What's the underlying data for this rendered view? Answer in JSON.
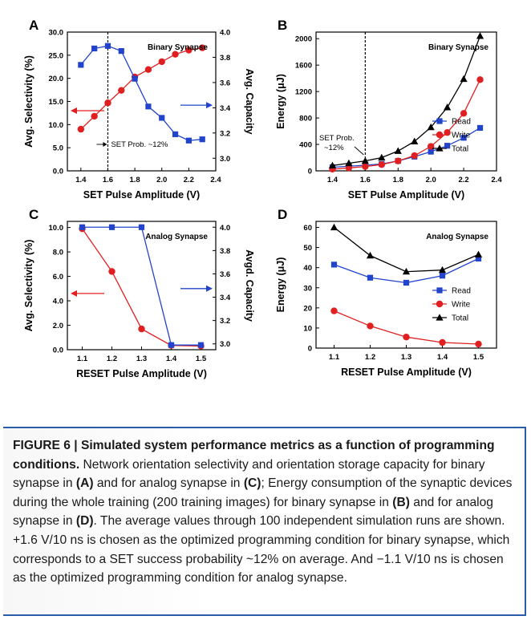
{
  "panels": [
    {
      "letter": "A",
      "annotation": "Binary Synapse",
      "chart_data": {
        "type": "line",
        "x": [
          1.4,
          1.5,
          1.6,
          1.7,
          1.8,
          1.9,
          2.0,
          2.1,
          2.2,
          2.3
        ],
        "xlabel": "SET Pulse Amplitude (V)",
        "xlim": [
          1.3,
          2.4
        ],
        "xticks": [
          "1.4",
          "1.6",
          "1.8",
          "2.0",
          "2.2",
          "2.4"
        ],
        "ylabel": "Avg. Selectivity (%)",
        "ylim": [
          0,
          30
        ],
        "yticks": [
          "0.0",
          "5.0",
          "10.0",
          "15.0",
          "20.0",
          "25.0",
          "30.0"
        ],
        "y2label": "Avg. Capacity",
        "y2lim": [
          2.9,
          4.0
        ],
        "y2ticks": [
          "3.0",
          "3.2",
          "3.4",
          "3.6",
          "3.8",
          "4.0"
        ],
        "series": [
          {
            "values": [
              9.0,
              11.8,
              14.7,
              17.4,
              20.3,
              21.9,
              23.6,
              25.2,
              26.1,
              26.6
            ],
            "axis": "left",
            "color": "#e02020",
            "marker": "circle"
          },
          {
            "values": [
              3.74,
              3.87,
              3.89,
              3.85,
              3.63,
              3.41,
              3.32,
              3.19,
              3.14,
              3.15
            ],
            "axis": "right",
            "color": "#2244cc",
            "marker": "square"
          }
        ],
        "vline": {
          "x": 1.6,
          "label": "SET Prob. ~12%"
        }
      }
    },
    {
      "letter": "B",
      "annotation": "Binary Synapse",
      "chart_data": {
        "type": "line",
        "x": [
          1.4,
          1.5,
          1.6,
          1.7,
          1.8,
          1.9,
          2.0,
          2.1,
          2.2,
          2.3
        ],
        "xlabel": "SET Pulse Amplitude (V)",
        "xlim": [
          1.3,
          2.4
        ],
        "xticks": [
          "1.4",
          "1.6",
          "1.8",
          "2.0",
          "2.2",
          "2.4"
        ],
        "ylabel": "Energy (μJ)",
        "ylim": [
          0,
          2100
        ],
        "yticks": [
          "0",
          "400",
          "800",
          "1200",
          "1600",
          "2000"
        ],
        "legend": "bottom-right",
        "series": [
          {
            "name": "Read",
            "values": [
              55,
              70,
              85,
              105,
              150,
              215,
              290,
              380,
              500,
              650
            ],
            "color": "#2244cc",
            "marker": "square"
          },
          {
            "name": "Write",
            "values": [
              25,
              45,
              65,
              95,
              150,
              230,
              370,
              580,
              870,
              1380
            ],
            "color": "#e02020",
            "marker": "circle"
          },
          {
            "name": "Total",
            "values": [
              80,
              115,
              150,
              200,
              300,
              445,
              660,
              960,
              1390,
              2040
            ],
            "color": "#000000",
            "marker": "triangle"
          }
        ],
        "vline": {
          "x": 1.6,
          "label": [
            "SET Prob.",
            "~12%"
          ]
        }
      }
    },
    {
      "letter": "C",
      "annotation": "Analog Synapse",
      "chart_data": {
        "type": "line",
        "x": [
          1.1,
          1.2,
          1.3,
          1.4,
          1.5
        ],
        "xlabel": "RESET Pulse Amplitude (V)",
        "xlim": [
          1.05,
          1.55
        ],
        "xticks": [
          "1.1",
          "1.2",
          "1.3",
          "1.4",
          "1.5"
        ],
        "ylabel": "Avg. Selectivity (%)",
        "ylim": [
          0,
          10.5
        ],
        "yticks": [
          "0.0",
          "2.0",
          "4.0",
          "6.0",
          "8.0",
          "10.0"
        ],
        "y2label": "Avgd. Capacity",
        "y2lim": [
          2.95,
          4.05
        ],
        "y2ticks": [
          "3.0",
          "3.2",
          "3.4",
          "3.6",
          "3.8",
          "4.0"
        ],
        "series": [
          {
            "values": [
              9.9,
              6.4,
              1.7,
              0.35,
              0.3
            ],
            "axis": "left",
            "color": "#e02020",
            "marker": "circle"
          },
          {
            "values": [
              4.0,
              4.0,
              4.0,
              2.99,
              2.99
            ],
            "axis": "right",
            "color": "#2244cc",
            "marker": "square"
          }
        ]
      }
    },
    {
      "letter": "D",
      "annotation": "Analog Synapse",
      "chart_data": {
        "type": "line",
        "x": [
          1.1,
          1.2,
          1.3,
          1.4,
          1.5
        ],
        "xlabel": "RESET Pulse Amplitude (V)",
        "xlim": [
          1.05,
          1.55
        ],
        "xticks": [
          "1.1",
          "1.2",
          "1.3",
          "1.4",
          "1.5"
        ],
        "ylabel": "Energy (μJ)",
        "ylim": [
          0,
          63
        ],
        "yticks": [
          "0",
          "10",
          "20",
          "30",
          "40",
          "50",
          "60"
        ],
        "legend": "right",
        "series": [
          {
            "name": "Read",
            "values": [
              41.5,
              35.0,
              32.5,
              36.0,
              44.5
            ],
            "color": "#2244cc",
            "marker": "square"
          },
          {
            "name": "Write",
            "values": [
              18.5,
              11.0,
              5.5,
              2.8,
              2.0
            ],
            "color": "#e02020",
            "marker": "circle"
          },
          {
            "name": "Total",
            "values": [
              60.0,
              46.0,
              38.0,
              38.8,
              46.5
            ],
            "color": "#000000",
            "marker": "triangle"
          }
        ]
      }
    }
  ],
  "caption": {
    "title": "FIGURE 6 | Simulated system performance metrics as a function of programming conditions.",
    "p1": " Network orientation selectivity and orientation storage capacity for binary synapse in ",
    "ref_a": "(A)",
    "p2": " and for analog synapse in ",
    "ref_c": "(C)",
    "p3": "; Energy consumption of the synaptic devices during the whole training (200 training images) for binary synapse in ",
    "ref_b": "(B)",
    "p4": " and for analog synapse in ",
    "ref_d": "(D)",
    "p5": ". The average values through 100 independent simulation runs are shown. +1.6 V/10 ns is chosen as the optimized programming condition for binary synapse, which corresponds to a SET success probability ~12% on average. And −1.1 V/10 ns is chosen as the optimized programming condition for analog synapse."
  }
}
